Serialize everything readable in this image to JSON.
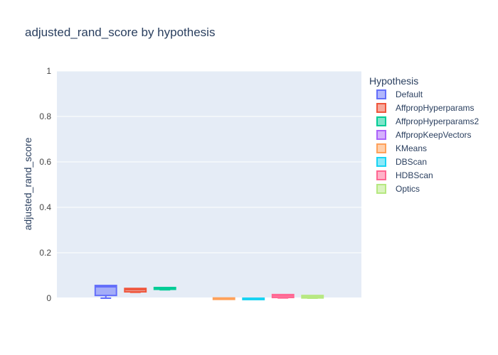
{
  "chart_data": {
    "type": "box",
    "title": "adjusted_rand_score by hypothesis",
    "ylabel": "adjusted_rand_score",
    "xlabel": "",
    "ylim": [
      0,
      1
    ],
    "yticks": [
      "0",
      "0.2",
      "0.4",
      "0.6",
      "0.8",
      "1"
    ],
    "ytick_values": [
      0,
      0.2,
      0.4,
      0.6,
      0.8,
      1
    ],
    "grid": true,
    "legend": {
      "title": "Hypothesis",
      "placement": "right"
    },
    "series": [
      {
        "name": "Default",
        "color": "#636efa",
        "min": 0.0,
        "q1": 0.012,
        "median": 0.05,
        "q3": 0.056,
        "max": 0.056
      },
      {
        "name": "AffpropHyperparams",
        "color": "#EF553B",
        "min": 0.026,
        "q1": 0.028,
        "median": 0.038,
        "q3": 0.043,
        "max": 0.044
      },
      {
        "name": "AffpropHyperparams2",
        "color": "#00cc96",
        "min": 0.037,
        "q1": 0.039,
        "median": 0.044,
        "q3": 0.047,
        "max": 0.048
      },
      {
        "name": "AffpropKeepVectors",
        "color": "#ab63fa",
        "min": null,
        "q1": null,
        "median": null,
        "q3": null,
        "max": null
      },
      {
        "name": "KMeans",
        "color": "#FFA15A",
        "min": -0.002,
        "q1": -0.001,
        "median": 0.0,
        "q3": 0.001,
        "max": 0.002
      },
      {
        "name": "DBScan",
        "color": "#19d3f3",
        "min": -0.003,
        "q1": -0.002,
        "median": -0.001,
        "q3": 0.0,
        "max": 0.001
      },
      {
        "name": "HDBScan",
        "color": "#FF6692",
        "min": 0.001,
        "q1": 0.003,
        "median": 0.01,
        "q3": 0.016,
        "max": 0.018
      },
      {
        "name": "Optics",
        "color": "#B6E880",
        "min": 0.0,
        "q1": 0.001,
        "median": 0.006,
        "q3": 0.012,
        "max": 0.013
      }
    ]
  }
}
